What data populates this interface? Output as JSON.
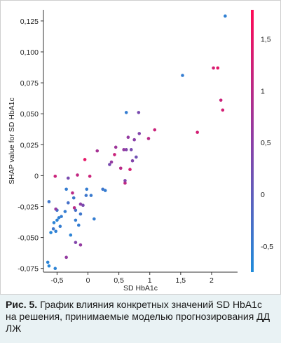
{
  "chart_data": {
    "type": "scatter",
    "title": "",
    "xlabel": "SD HbA1c",
    "ylabel": "SHAP value for SD HbA1c",
    "xlim": [
      -0.72,
      2.42
    ],
    "ylim": [
      -0.078,
      0.134
    ],
    "x_ticks": [
      -0.5,
      0,
      0.5,
      1,
      1.5,
      2
    ],
    "x_tick_labels": [
      "-0,5",
      "0",
      "0,5",
      "1",
      "1,5",
      "2"
    ],
    "y_ticks": [
      -0.075,
      -0.05,
      -0.025,
      0,
      0.025,
      0.05,
      0.075,
      0.1,
      0.125
    ],
    "y_tick_labels": [
      "-0,075",
      "-0,050",
      "-0,025",
      "0",
      "0,025",
      "0,050",
      "0,075",
      "0,100",
      "0,125"
    ],
    "grid": false,
    "colorbar": {
      "range": [
        -0.75,
        1.78
      ],
      "ticks": [
        -0.5,
        0,
        0.5,
        1,
        1.5
      ],
      "tick_labels": [
        "-0,5",
        "0",
        "0,5",
        "1",
        "1,5"
      ],
      "color_low": "#1f8cdb",
      "color_mid": "#8c3ea6",
      "color_high": "#ff0a55"
    },
    "points": [
      {
        "x": 2.22,
        "y": 0.129,
        "c": -0.55
      },
      {
        "x": 1.53,
        "y": 0.081,
        "c": -0.5
      },
      {
        "x": 2.03,
        "y": 0.087,
        "c": 1.3
      },
      {
        "x": 2.1,
        "y": 0.087,
        "c": 1.5
      },
      {
        "x": 2.15,
        "y": 0.061,
        "c": 1.2
      },
      {
        "x": 2.18,
        "y": 0.053,
        "c": 1.3
      },
      {
        "x": 1.77,
        "y": 0.035,
        "c": 1.3
      },
      {
        "x": 1.08,
        "y": 0.037,
        "c": 1.2
      },
      {
        "x": 0.98,
        "y": 0.03,
        "c": 1.0
      },
      {
        "x": 0.82,
        "y": 0.051,
        "c": 0.3
      },
      {
        "x": 0.62,
        "y": 0.051,
        "c": -0.5
      },
      {
        "x": 0.83,
        "y": 0.034,
        "c": 0.4
      },
      {
        "x": 0.75,
        "y": 0.029,
        "c": 0.5
      },
      {
        "x": 0.65,
        "y": 0.031,
        "c": 0.6
      },
      {
        "x": 0.62,
        "y": 0.021,
        "c": 0.4
      },
      {
        "x": 0.58,
        "y": 0.021,
        "c": 0.6
      },
      {
        "x": 0.7,
        "y": 0.021,
        "c": 0.3
      },
      {
        "x": 0.72,
        "y": 0.012,
        "c": 0.4
      },
      {
        "x": 0.78,
        "y": 0.015,
        "c": 0.2
      },
      {
        "x": 0.45,
        "y": 0.023,
        "c": 0.7
      },
      {
        "x": 0.38,
        "y": 0.011,
        "c": 0.6
      },
      {
        "x": 0.35,
        "y": 0.009,
        "c": 0.3
      },
      {
        "x": 0.43,
        "y": 0.017,
        "c": 1.2
      },
      {
        "x": 0.53,
        "y": 0.006,
        "c": 1.0
      },
      {
        "x": 0.68,
        "y": 0.005,
        "c": 1.3
      },
      {
        "x": 0.6,
        "y": -0.006,
        "c": 1.1
      },
      {
        "x": 0.6,
        "y": -0.004,
        "c": 0.4
      },
      {
        "x": 0.28,
        "y": -0.012,
        "c": -0.5
      },
      {
        "x": 0.24,
        "y": -0.011,
        "c": -0.4
      },
      {
        "x": 0.15,
        "y": 0.02,
        "c": 0.8
      },
      {
        "x": 0.03,
        "y": -0.0005,
        "c": 1.2
      },
      {
        "x": -0.05,
        "y": 0.013,
        "c": 1.5
      },
      {
        "x": -0.17,
        "y": 0.0005,
        "c": 1.1
      },
      {
        "x": -0.53,
        "y": -0.0005,
        "c": 1.2
      },
      {
        "x": -0.32,
        "y": -0.002,
        "c": 0.3
      },
      {
        "x": -0.25,
        "y": -0.014,
        "c": 1.0
      },
      {
        "x": -0.35,
        "y": -0.011,
        "c": -0.5
      },
      {
        "x": -0.02,
        "y": -0.011,
        "c": -0.5
      },
      {
        "x": -0.03,
        "y": -0.016,
        "c": -0.4
      },
      {
        "x": -0.23,
        "y": -0.018,
        "c": -0.4
      },
      {
        "x": -0.32,
        "y": -0.022,
        "c": -0.3
      },
      {
        "x": -0.08,
        "y": -0.024,
        "c": 0.3
      },
      {
        "x": -0.12,
        "y": -0.023,
        "c": 0.5
      },
      {
        "x": -0.2,
        "y": -0.028,
        "c": -0.3
      },
      {
        "x": -0.22,
        "y": -0.026,
        "c": 1.0
      },
      {
        "x": -0.37,
        "y": -0.029,
        "c": -0.5
      },
      {
        "x": -0.12,
        "y": -0.031,
        "c": -0.4
      },
      {
        "x": -0.43,
        "y": -0.033,
        "c": -0.5
      },
      {
        "x": -0.47,
        "y": -0.034,
        "c": -0.55
      },
      {
        "x": -0.5,
        "y": -0.036,
        "c": -0.6
      },
      {
        "x": -0.45,
        "y": -0.041,
        "c": -0.5
      },
      {
        "x": -0.52,
        "y": -0.045,
        "c": -0.55
      },
      {
        "x": -0.6,
        "y": -0.046,
        "c": -0.65
      },
      {
        "x": -0.55,
        "y": -0.038,
        "c": -0.6
      },
      {
        "x": -0.5,
        "y": -0.028,
        "c": -0.4
      },
      {
        "x": -0.52,
        "y": -0.027,
        "c": 0.6
      },
      {
        "x": -0.63,
        "y": -0.021,
        "c": -0.4
      },
      {
        "x": -0.56,
        "y": -0.043,
        "c": -0.4
      },
      {
        "x": -0.15,
        "y": -0.04,
        "c": -0.5
      },
      {
        "x": -0.2,
        "y": -0.036,
        "c": -0.5
      },
      {
        "x": -0.28,
        "y": -0.048,
        "c": -0.6
      },
      {
        "x": -0.2,
        "y": -0.054,
        "c": 0.4
      },
      {
        "x": -0.12,
        "y": -0.056,
        "c": 0.6
      },
      {
        "x": -0.35,
        "y": -0.066,
        "c": 0.6
      },
      {
        "x": -0.65,
        "y": -0.07,
        "c": -0.6
      },
      {
        "x": -0.63,
        "y": -0.073,
        "c": -0.65
      },
      {
        "x": -0.53,
        "y": -0.075,
        "c": -0.6
      },
      {
        "x": 0.1,
        "y": -0.035,
        "c": -0.5
      },
      {
        "x": 0.05,
        "y": -0.016,
        "c": -0.45
      }
    ]
  },
  "caption": {
    "label": "Рис. 5.",
    "text": "График влияния конкретных значений SD HbA1c на решения, принимаемые моделью прогнозирования ДД ЛЖ"
  }
}
